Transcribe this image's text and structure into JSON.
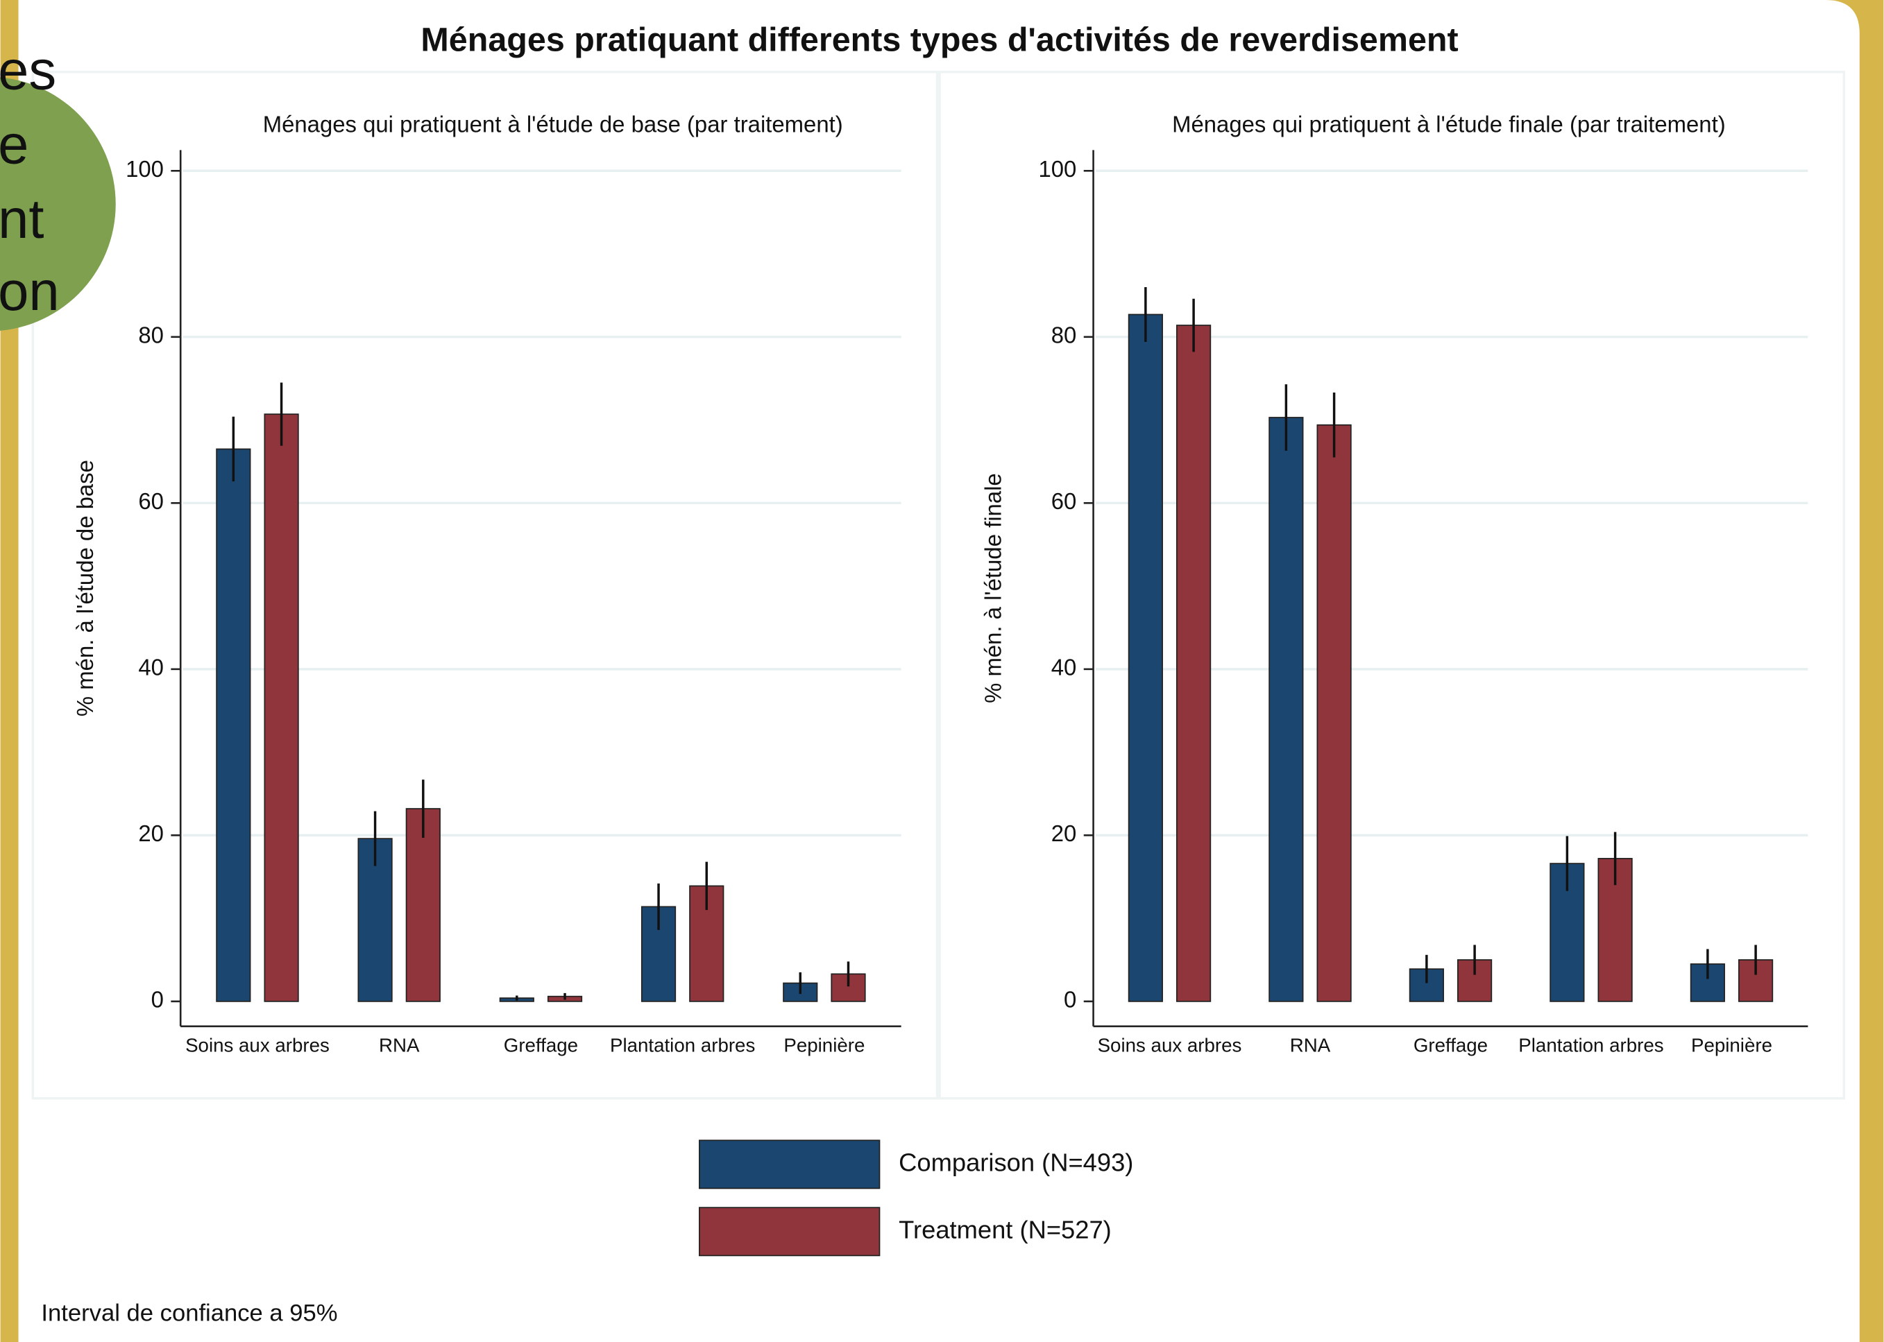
{
  "title": "Ménages pratiquant differents types d'activités de reverdisement",
  "note": "Interval de confiance a 95%",
  "badge_lines": [
    "es",
    "e",
    "nt",
    "on"
  ],
  "chart_data": [
    {
      "type": "bar",
      "title": "Ménages qui pratiquent à l'étude de base (par traitement)",
      "y_label": "% mén. à l'étude de base",
      "categories": [
        "Soins aux arbres",
        "RNA",
        "Greffage",
        "Plantation arbres",
        "Pepinière"
      ],
      "series": [
        {
          "name": "Comparison (N=493)",
          "color": "#1b4670",
          "values": [
            66.5,
            19.6,
            0.4,
            11.4,
            2.2
          ],
          "errors": [
            3.9,
            3.3,
            0.3,
            2.8,
            1.3
          ]
        },
        {
          "name": "Treatment (N=527)",
          "color": "#90353c",
          "values": [
            70.7,
            23.2,
            0.6,
            13.9,
            3.3
          ],
          "errors": [
            3.8,
            3.5,
            0.4,
            2.9,
            1.5
          ]
        }
      ],
      "ylim": [
        -3,
        102.5
      ],
      "yticks": [
        0,
        20,
        40,
        60,
        80,
        100
      ],
      "grid": true
    },
    {
      "type": "bar",
      "title": "Ménages qui pratiquent à l'étude finale (par traitement)",
      "y_label": "% mén. à l'étude finale",
      "categories": [
        "Soins aux arbres",
        "RNA",
        "Greffage",
        "Plantation arbres",
        "Pepinière"
      ],
      "series": [
        {
          "name": "Comparison (N=493)",
          "color": "#1b4670",
          "values": [
            82.7,
            70.3,
            3.9,
            16.6,
            4.5
          ],
          "errors": [
            3.3,
            4.0,
            1.7,
            3.3,
            1.8
          ]
        },
        {
          "name": "Treatment (N=527)",
          "color": "#90353c",
          "values": [
            81.4,
            69.4,
            5.0,
            17.2,
            5.0
          ],
          "errors": [
            3.2,
            3.9,
            1.8,
            3.2,
            1.8
          ]
        }
      ],
      "ylim": [
        -3,
        102.5
      ],
      "yticks": [
        0,
        20,
        40,
        60,
        80,
        100
      ],
      "grid": true
    }
  ]
}
